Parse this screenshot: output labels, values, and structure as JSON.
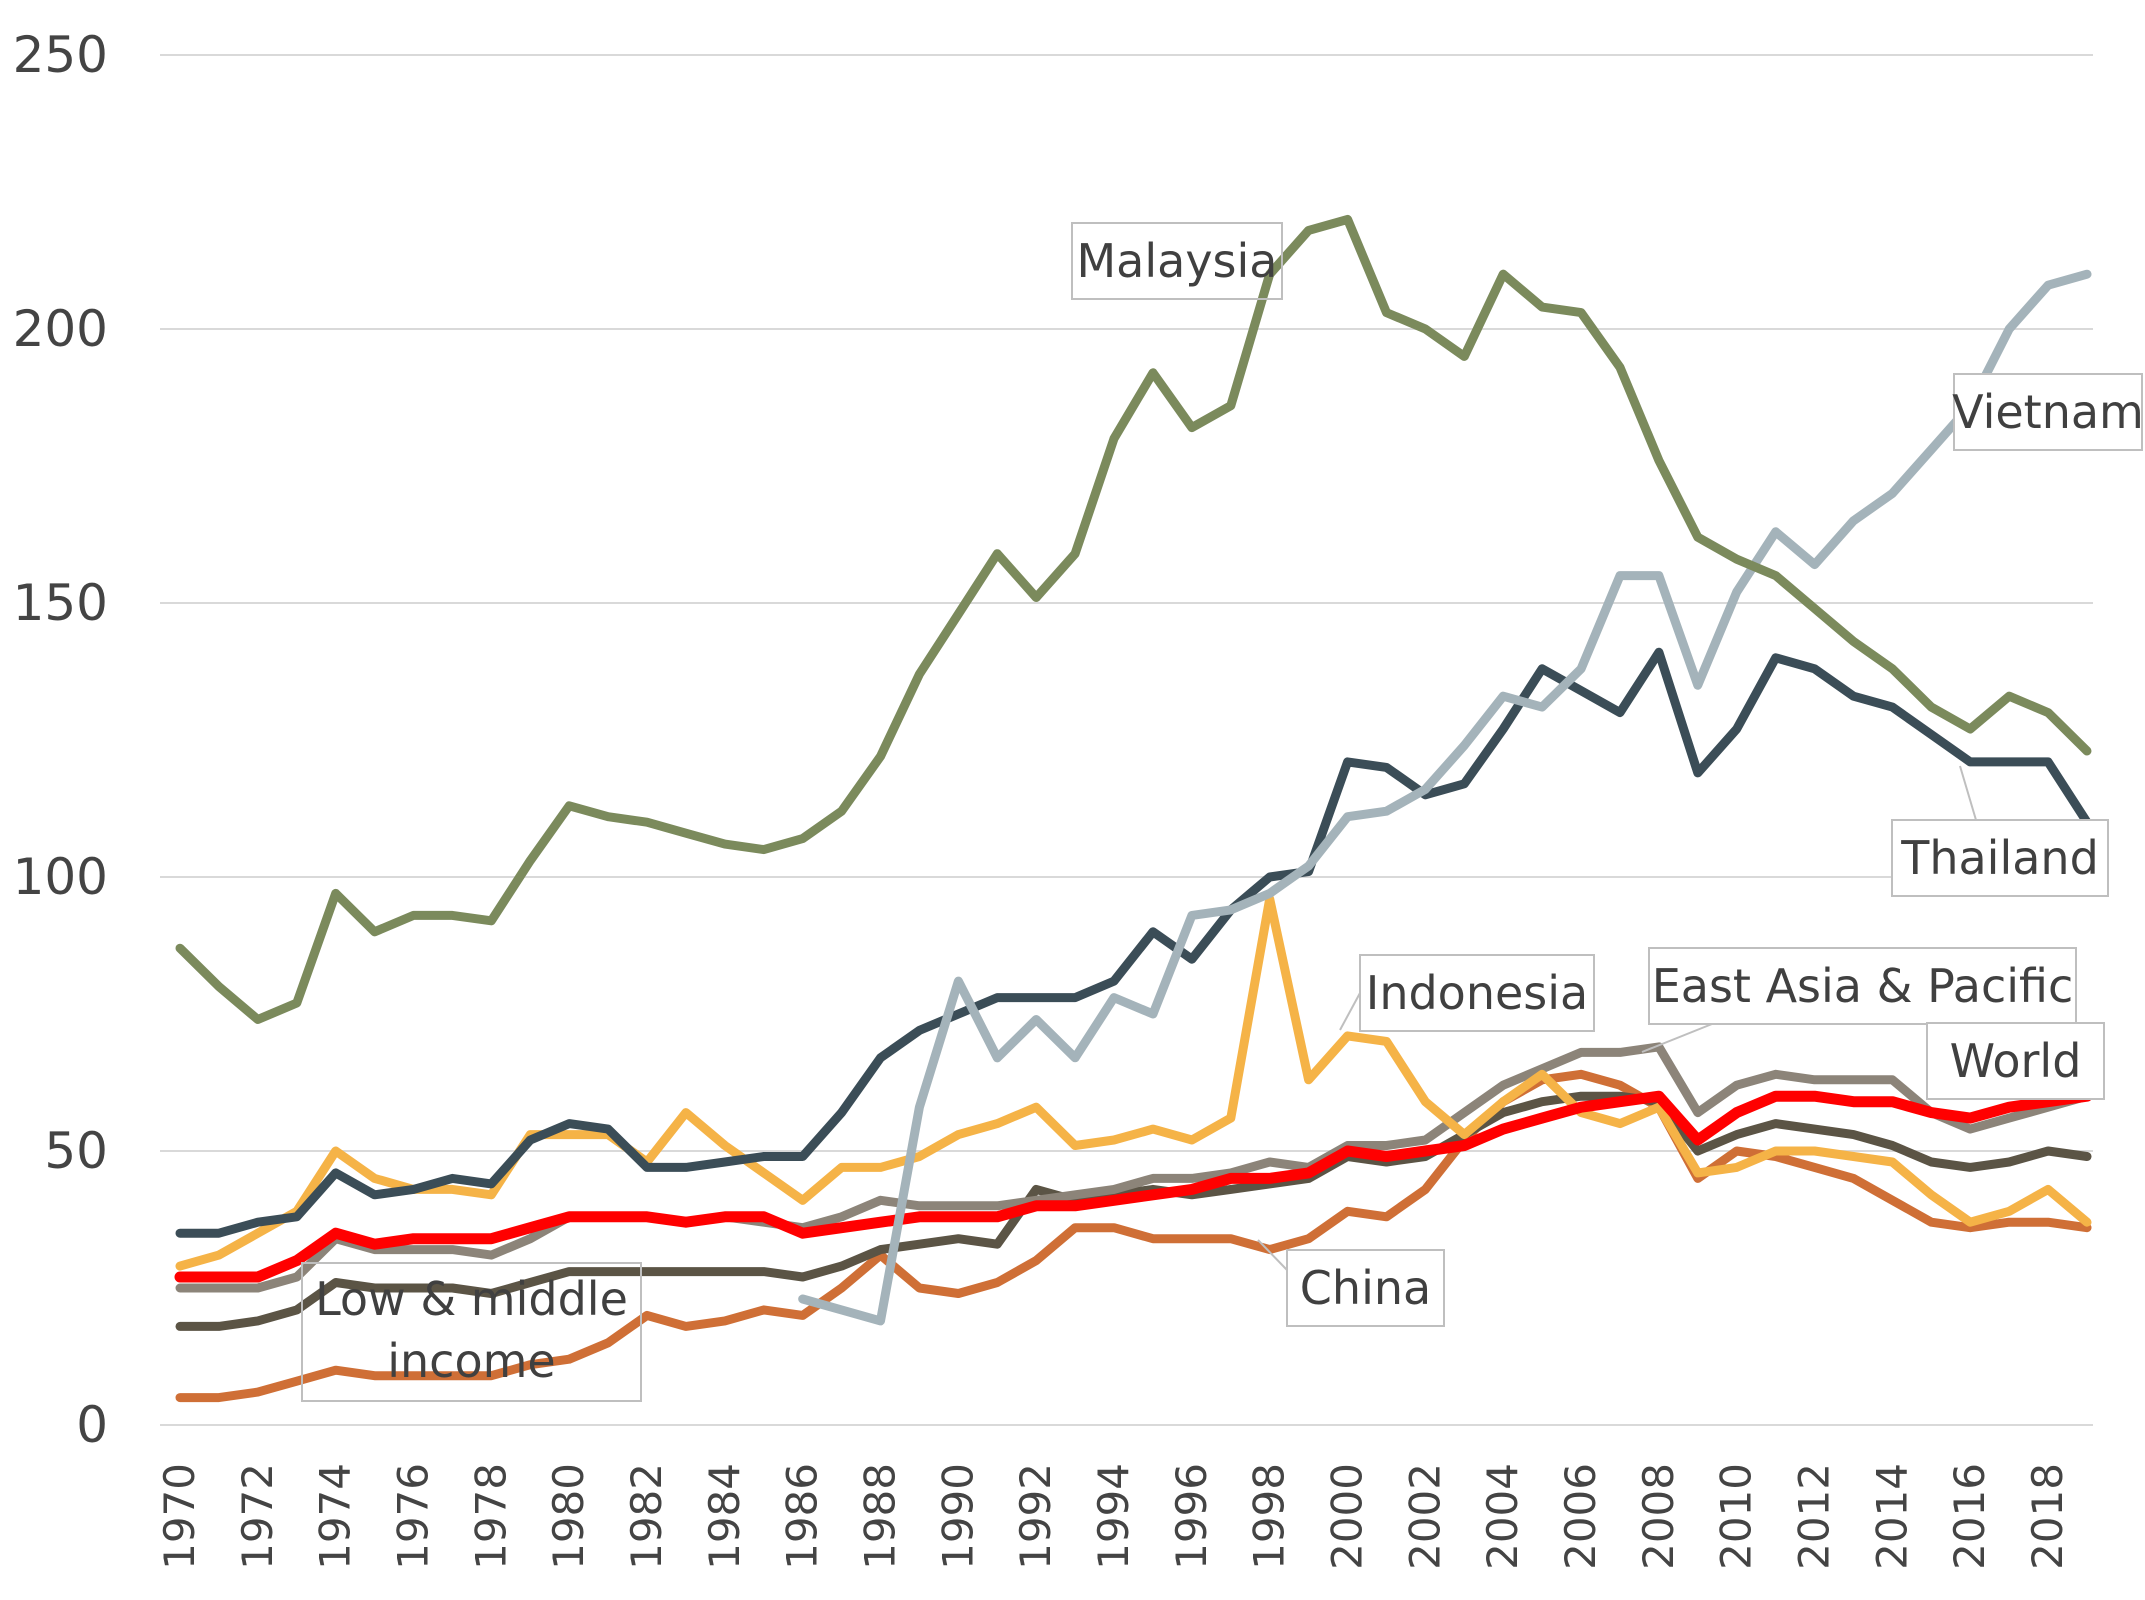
{
  "chart_data": {
    "type": "line",
    "title": "",
    "xlabel": "",
    "ylabel": "",
    "ylim": [
      0,
      250
    ],
    "yticks": [
      0,
      50,
      100,
      150,
      200,
      250
    ],
    "xlim": [
      1970,
      2019
    ],
    "xticks": [
      1970,
      1972,
      1974,
      1976,
      1978,
      1980,
      1982,
      1984,
      1986,
      1988,
      1990,
      1992,
      1994,
      1996,
      1998,
      2000,
      2002,
      2004,
      2006,
      2008,
      2010,
      2012,
      2014,
      2016,
      2018
    ],
    "grid": "horizontal",
    "legend": "none (direct annotations)",
    "series": [
      {
        "name": "Malaysia",
        "color": "#7b8a5c",
        "start": 1970,
        "values": [
          87,
          80,
          74,
          77,
          97,
          90,
          93,
          93,
          92,
          103,
          113,
          111,
          110,
          108,
          106,
          105,
          107,
          112,
          122,
          137,
          148,
          159,
          151,
          159,
          180,
          192,
          182,
          186,
          210,
          218,
          220,
          203,
          200,
          195,
          210,
          204,
          203,
          193,
          176,
          162,
          158,
          155,
          149,
          143,
          138,
          131,
          127,
          133,
          130,
          123
        ]
      },
      {
        "name": "Vietnam",
        "color": "#a4b3ba",
        "start": 1986,
        "values": [
          23,
          21,
          19,
          58,
          81,
          67,
          74,
          67,
          78,
          75,
          93,
          94,
          97,
          102,
          111,
          112,
          116,
          124,
          133,
          131,
          138,
          155,
          155,
          135,
          152,
          163,
          157,
          165,
          170,
          178,
          186,
          200,
          208,
          210
        ]
      },
      {
        "name": "Thailand",
        "color": "#3b4d57",
        "start": 1970,
        "values": [
          35,
          35,
          37,
          38,
          46,
          42,
          43,
          45,
          44,
          52,
          55,
          54,
          47,
          47,
          48,
          49,
          49,
          57,
          67,
          72,
          75,
          78,
          78,
          78,
          81,
          90,
          85,
          94,
          100,
          101,
          121,
          120,
          115,
          117,
          127,
          138,
          134,
          130,
          141,
          119,
          127,
          140,
          138,
          133,
          131,
          126,
          121,
          121,
          121,
          110
        ]
      },
      {
        "name": "Indonesia",
        "color": "#f5b347",
        "start": 1970,
        "values": [
          29,
          31,
          35,
          39,
          50,
          45,
          43,
          43,
          42,
          53,
          53,
          53,
          48,
          57,
          51,
          46,
          41,
          47,
          47,
          49,
          53,
          55,
          58,
          51,
          52,
          54,
          52,
          56,
          96,
          63,
          71,
          70,
          59,
          53,
          59,
          64,
          57,
          55,
          58,
          46,
          47,
          50,
          50,
          49,
          48,
          42,
          37,
          39,
          43,
          37
        ]
      },
      {
        "name": "East Asia & Pacific",
        "color": "#8c8479",
        "start": 1970,
        "values": [
          25,
          25,
          25,
          27,
          34,
          32,
          32,
          32,
          31,
          34,
          38,
          38,
          38,
          37,
          38,
          37,
          36,
          38,
          41,
          40,
          40,
          40,
          41,
          42,
          43,
          45,
          45,
          46,
          48,
          47,
          51,
          51,
          52,
          57,
          62,
          65,
          68,
          68,
          69,
          57,
          62,
          64,
          63,
          63,
          63,
          57,
          54,
          56,
          58,
          60
        ]
      },
      {
        "name": "China",
        "color": "#cf6f36",
        "start": 1970,
        "values": [
          5,
          5,
          6,
          8,
          10,
          9,
          9,
          9,
          9,
          11,
          12,
          15,
          20,
          18,
          19,
          21,
          20,
          25,
          31,
          25,
          24,
          26,
          30,
          36,
          36,
          34,
          34,
          34,
          32,
          34,
          39,
          38,
          43,
          52,
          59,
          63,
          64,
          62,
          58,
          45,
          50,
          49,
          47,
          45,
          41,
          37,
          36,
          37,
          37,
          36
        ]
      },
      {
        "name": "Low & middle income",
        "color": "#5b5445",
        "start": 1970,
        "values": [
          18,
          18,
          19,
          21,
          26,
          25,
          25,
          25,
          24,
          26,
          28,
          28,
          28,
          28,
          28,
          28,
          27,
          29,
          32,
          33,
          34,
          33,
          43,
          41,
          42,
          43,
          42,
          43,
          44,
          45,
          49,
          48,
          49,
          53,
          57,
          59,
          60,
          60,
          59,
          50,
          53,
          55,
          54,
          53,
          51,
          48,
          47,
          48,
          50,
          49
        ]
      },
      {
        "name": "World",
        "color": "#ff0000",
        "start": 1970,
        "values": [
          27,
          27,
          27,
          30,
          35,
          33,
          34,
          34,
          34,
          36,
          38,
          38,
          38,
          37,
          38,
          38,
          35,
          36,
          37,
          38,
          38,
          38,
          40,
          40,
          41,
          42,
          43,
          45,
          45,
          46,
          50,
          49,
          50,
          51,
          54,
          56,
          58,
          59,
          60,
          52,
          57,
          60,
          60,
          59,
          59,
          57,
          56,
          58,
          59,
          60
        ]
      }
    ]
  },
  "annotations": [
    {
      "label": "Malaysia"
    },
    {
      "label": "Vietnam"
    },
    {
      "label": "Thailand"
    },
    {
      "label": "Indonesia"
    },
    {
      "label": "East Asia & Pacific"
    },
    {
      "label": "World"
    },
    {
      "label": "China"
    },
    {
      "label": "Low & middle income",
      "lines": [
        "Low & middle",
        "income"
      ]
    }
  ]
}
